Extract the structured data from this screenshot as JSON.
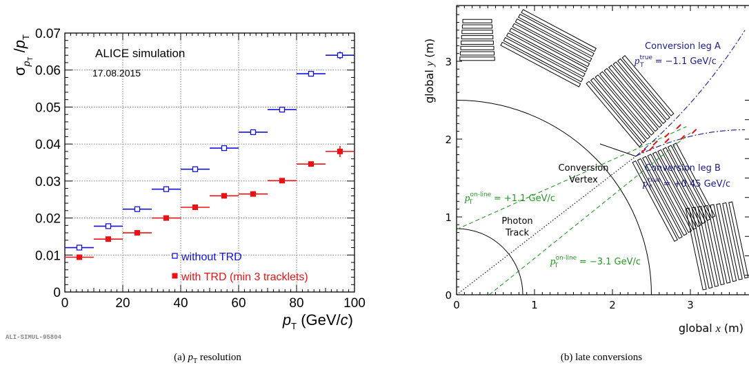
{
  "chart_data": [
    {
      "type": "scatter",
      "caption": "(a) pT resolution",
      "tag": "ALI-SIMUL-95804",
      "title": "ALICE simulation",
      "subtitle": "17.08.2015",
      "xlabel": "p_T (GeV/c)",
      "ylabel": "σ_pT / p_T",
      "xlim": [
        0,
        100
      ],
      "ylim": [
        0,
        0.07
      ],
      "xticks": [
        "0",
        "20",
        "40",
        "60",
        "80",
        "100"
      ],
      "yticks": [
        "0",
        "0.01",
        "0.02",
        "0.03",
        "0.04",
        "0.05",
        "0.06",
        "0.07"
      ],
      "grid": true,
      "legend_position": "bottom-right",
      "series": [
        {
          "name": "without TRD",
          "color": "#1010e0",
          "marker": "open-square",
          "x": [
            5,
            15,
            25,
            35,
            45,
            55,
            65,
            75,
            85,
            95
          ],
          "xerr": 5,
          "y": [
            0.012,
            0.0178,
            0.0224,
            0.0278,
            0.0332,
            0.0389,
            0.0432,
            0.0493,
            0.059,
            0.064
          ],
          "yerr": [
            0,
            0,
            0,
            0,
            0,
            0,
            0,
            0,
            0,
            0.001
          ]
        },
        {
          "name": "with TRD (min 3 tracklets)",
          "color": "#ee1010",
          "marker": "filled-square",
          "x": [
            5,
            15,
            25,
            35,
            45,
            55,
            65,
            75,
            85,
            95
          ],
          "xerr": 5,
          "y": [
            0.0094,
            0.0143,
            0.016,
            0.02,
            0.0229,
            0.026,
            0.0265,
            0.0301,
            0.0346,
            0.038
          ],
          "yerr": [
            0,
            0,
            0,
            0,
            0,
            0,
            0,
            0,
            0.0006,
            0.0015
          ]
        }
      ]
    },
    {
      "type": "line",
      "caption": "(b) late conversions",
      "xlabel": "global x (m)",
      "ylabel": "global y (m)",
      "xlim": [
        0,
        3.7
      ],
      "ylim": [
        0,
        3.7
      ],
      "xticks": [
        "0",
        "1",
        "2",
        "3"
      ],
      "yticks": [
        "0",
        "1",
        "2",
        "3"
      ],
      "grid": false,
      "circles_r": [
        0.85,
        2.5
      ],
      "vertex": [
        2.3,
        1.78
      ],
      "annotations": {
        "vertex_label_1": "Conversion",
        "vertex_label_2": "Vertex",
        "photon_label_1": "Photon",
        "photon_label_2": "Track",
        "leg_a_title": "Conversion leg A",
        "leg_a_value": "= −1.1 GeV/c",
        "leg_b_title": "Conversion leg B",
        "leg_b_value": "= +0.45 GeV/c",
        "online_1_value": "= +1.1 GeV/c",
        "online_2_value": "= −3.1 GeV/c",
        "p_symbol": "p",
        "sub_T": "T",
        "sup_true": "true",
        "sup_online": "on-line"
      },
      "colors": {
        "leg": "#1a1a90",
        "online": "#229922",
        "track": "#111111",
        "hits": "#dd1111"
      }
    }
  ]
}
